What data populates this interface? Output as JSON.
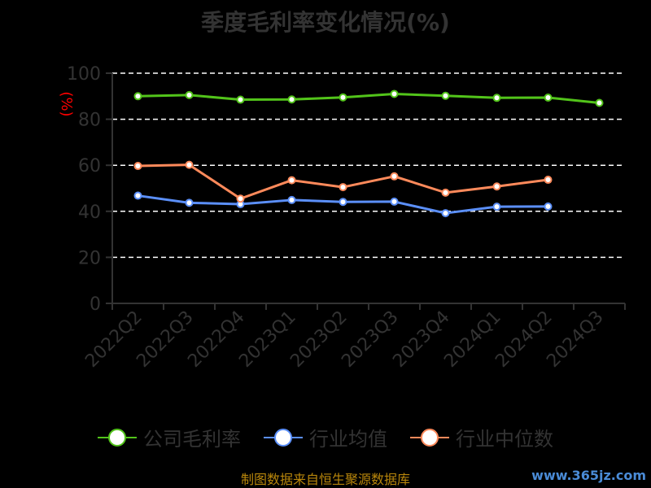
{
  "title": "季度毛利率变化情况(%)",
  "source_text": "制图数据来自恒生聚源数据库",
  "watermark": "www.365jz.com",
  "chart_data": {
    "type": "line",
    "categories": [
      "2022Q2",
      "2022Q3",
      "2022Q4",
      "2023Q1",
      "2023Q2",
      "2023Q3",
      "2023Q4",
      "2024Q1",
      "2024Q2",
      "2024Q3"
    ],
    "ylabel": "(%)",
    "ylim": [
      0,
      100
    ],
    "yticks": [
      0,
      20,
      40,
      60,
      80,
      100
    ],
    "grid": true,
    "legend_position": "bottom",
    "series": [
      {
        "name": "公司毛利率",
        "color": "#52c41a",
        "values": [
          90.0,
          90.5,
          88.5,
          88.6,
          89.5,
          91.0,
          90.2,
          89.3,
          89.4,
          87.1
        ]
      },
      {
        "name": "行业均值",
        "color": "#5b8ff9",
        "values": [
          46.8,
          43.7,
          43.1,
          44.9,
          44.1,
          44.2,
          39.2,
          42.0,
          42.1,
          null
        ]
      },
      {
        "name": "行业中位数",
        "color": "#ff8a5b",
        "values": [
          59.7,
          60.2,
          45.5,
          53.5,
          50.5,
          55.2,
          48.1,
          50.8,
          53.7,
          null
        ]
      }
    ]
  }
}
